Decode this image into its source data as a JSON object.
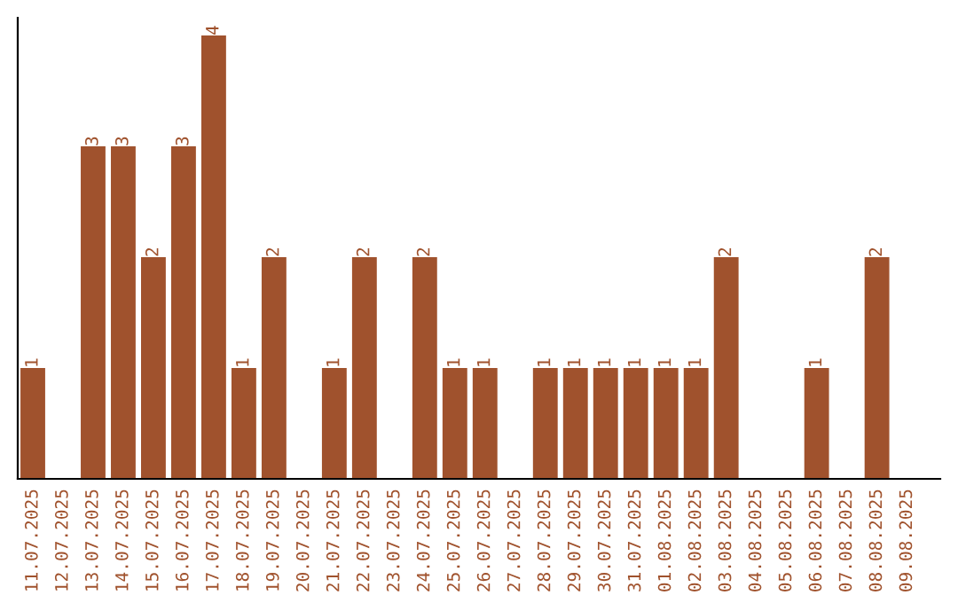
{
  "chart_data": {
    "type": "bar",
    "categories": [
      "11.07.2025",
      "12.07.2025",
      "13.07.2025",
      "14.07.2025",
      "15.07.2025",
      "16.07.2025",
      "17.07.2025",
      "18.07.2025",
      "19.07.2025",
      "20.07.2025",
      "21.07.2025",
      "22.07.2025",
      "23.07.2025",
      "24.07.2025",
      "25.07.2025",
      "26.07.2025",
      "27.07.2025",
      "28.07.2025",
      "29.07.2025",
      "30.07.2025",
      "31.07.2025",
      "01.08.2025",
      "02.08.2025",
      "03.08.2025",
      "04.08.2025",
      "05.08.2025",
      "06.08.2025",
      "07.08.2025",
      "08.08.2025",
      "09.08.2025"
    ],
    "values": [
      1,
      0,
      3,
      3,
      2,
      3,
      4,
      1,
      2,
      0,
      1,
      2,
      0,
      2,
      1,
      1,
      0,
      1,
      1,
      1,
      1,
      1,
      1,
      2,
      0,
      0,
      1,
      0,
      2,
      0
    ],
    "value_labels": [
      "1",
      null,
      "3",
      "3",
      "2",
      "3",
      "4",
      "1",
      "2",
      null,
      "1",
      "2",
      null,
      "2",
      "1",
      "1",
      null,
      "1",
      "1",
      "1",
      "1",
      "1",
      "1",
      "2",
      null,
      null,
      "1",
      null,
      "2",
      null
    ],
    "color": "#a0522d",
    "grid": false,
    "legend": false
  }
}
